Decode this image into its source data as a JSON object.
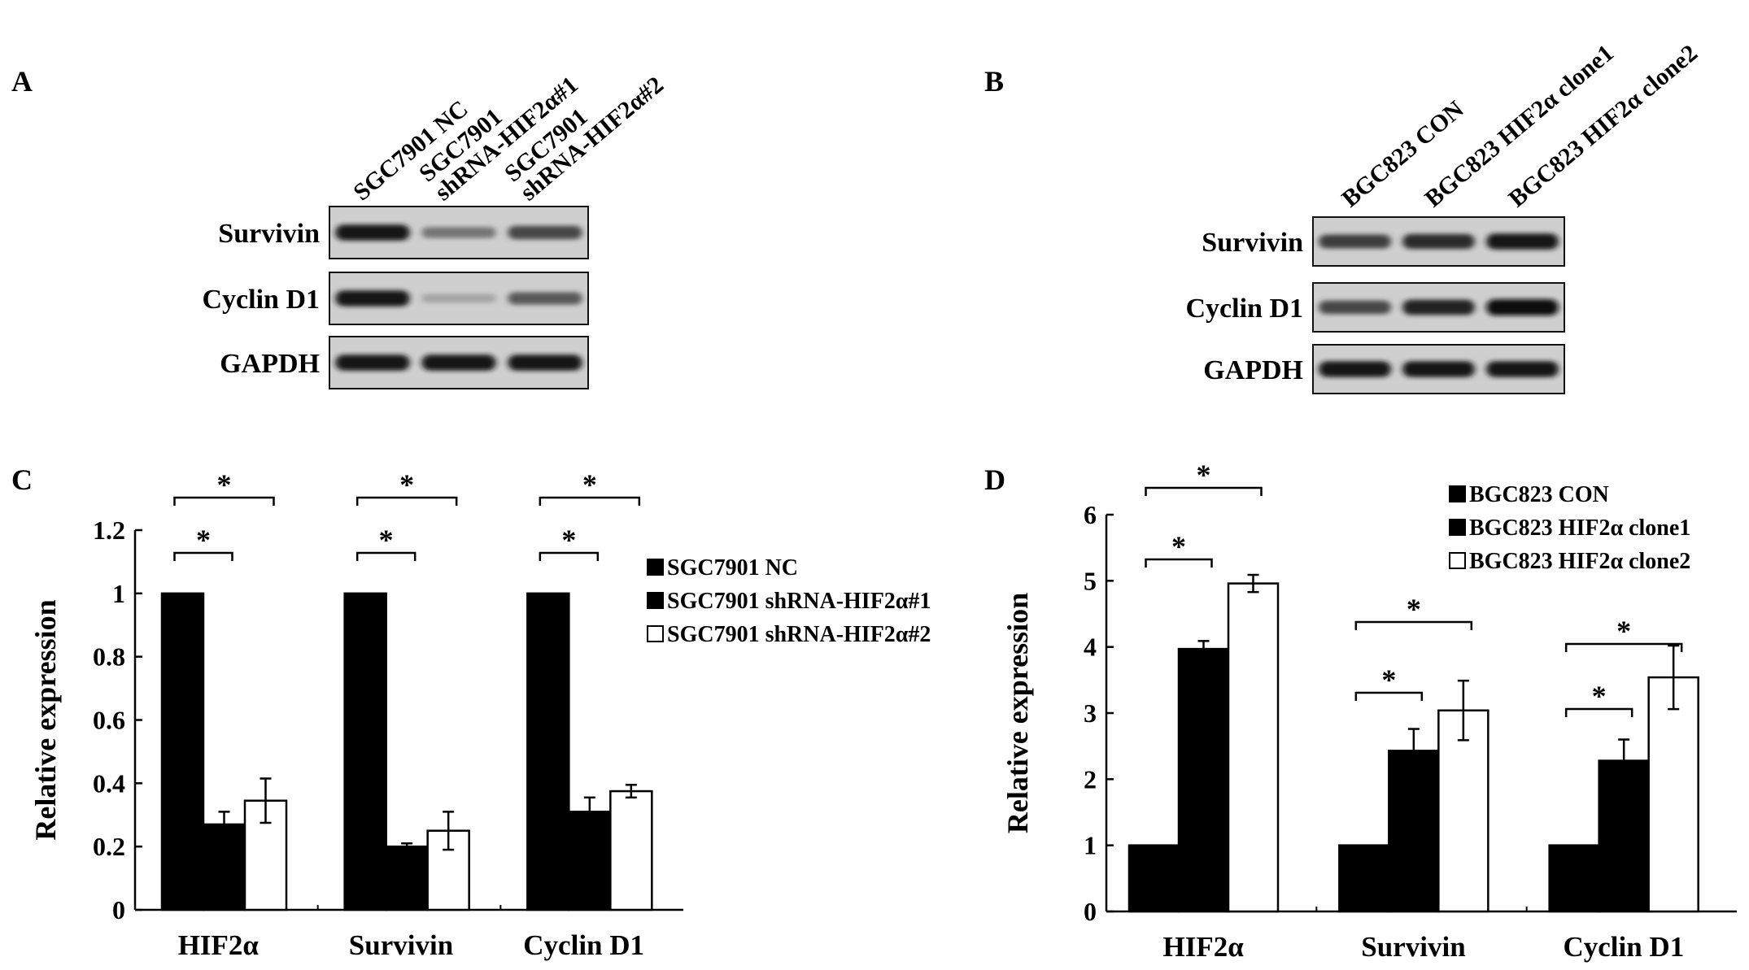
{
  "panels": {
    "A": {
      "letter": "A",
      "lanes": [
        [
          "SGC7901 NC"
        ],
        [
          "SGC7901",
          "shRNA-HIF2α#1"
        ],
        [
          "SGC7901",
          "shRNA-HIF2α#2"
        ]
      ],
      "rows": [
        {
          "label": "Survivin",
          "intensity": [
            0.95,
            0.45,
            0.7
          ]
        },
        {
          "label": "Cyclin D1",
          "intensity": [
            0.95,
            0.2,
            0.6
          ]
        },
        {
          "label": "GAPDH",
          "intensity": [
            0.95,
            0.95,
            0.95
          ]
        }
      ]
    },
    "B": {
      "letter": "B",
      "lanes": [
        [
          "BGC823 CON"
        ],
        [
          "BGC823 HIF2α clone1"
        ],
        [
          "BGC823 HIF2α clone2"
        ]
      ],
      "rows": [
        {
          "label": "Survivin",
          "intensity": [
            0.75,
            0.85,
            0.95
          ]
        },
        {
          "label": "Cyclin D1",
          "intensity": [
            0.7,
            0.9,
            1.0
          ]
        },
        {
          "label": "GAPDH",
          "intensity": [
            0.95,
            0.95,
            0.95
          ]
        }
      ]
    },
    "C": {
      "letter": "C"
    },
    "D": {
      "letter": "D"
    }
  },
  "chart_data": [
    {
      "type": "bar",
      "panel": "C",
      "categories": [
        "HIF2α",
        "Survivin",
        "Cyclin D1"
      ],
      "series": [
        {
          "name": "SGC7901 NC",
          "fill": "#000000",
          "values": [
            1.0,
            1.0,
            1.0
          ],
          "errors": [
            0,
            0,
            0
          ]
        },
        {
          "name": "SGC7901 shRNA-HIF2α#1",
          "fill": "#000000",
          "values": [
            0.27,
            0.2,
            0.31
          ],
          "errors": [
            0.04,
            0.01,
            0.045
          ]
        },
        {
          "name": "SGC7901 shRNA-HIF2α#2",
          "fill": "#ffffff",
          "values": [
            0.345,
            0.25,
            0.375
          ],
          "errors": [
            0.07,
            0.06,
            0.02
          ]
        }
      ],
      "ylabel": "Relative expression",
      "yticks": [
        "0",
        "0.2",
        "0.4",
        "0.6",
        "0.8",
        "1",
        "1.2"
      ],
      "ylim": [
        0,
        1.2
      ],
      "legend_position": "right",
      "significance": [
        {
          "category": 0,
          "from": 0,
          "to": 1,
          "label": "*"
        },
        {
          "category": 0,
          "from": 0,
          "to": 2,
          "label": "*"
        },
        {
          "category": 1,
          "from": 0,
          "to": 1,
          "label": "*"
        },
        {
          "category": 1,
          "from": 0,
          "to": 2,
          "label": "*"
        },
        {
          "category": 2,
          "from": 0,
          "to": 1,
          "label": "*"
        },
        {
          "category": 2,
          "from": 0,
          "to": 2,
          "label": "*"
        }
      ]
    },
    {
      "type": "bar",
      "panel": "D",
      "categories": [
        "HIF2α",
        "Survivin",
        "Cyclin D1"
      ],
      "series": [
        {
          "name": "BGC823 CON",
          "fill": "#000000",
          "values": [
            1.0,
            1.0,
            1.0
          ],
          "errors": [
            0,
            0,
            0
          ]
        },
        {
          "name": "BGC823 HIF2α clone1",
          "fill": "#000000",
          "values": [
            3.97,
            2.43,
            2.28
          ],
          "errors": [
            0.12,
            0.33,
            0.32
          ]
        },
        {
          "name": "BGC823 HIF2α clone2",
          "fill": "#ffffff",
          "values": [
            4.96,
            3.04,
            3.54
          ],
          "errors": [
            0.13,
            0.45,
            0.48
          ]
        }
      ],
      "ylabel": "Relative expression",
      "yticks": [
        "0",
        "1",
        "2",
        "3",
        "4",
        "5",
        "6"
      ],
      "ylim": [
        0,
        6
      ],
      "legend_position": "top-right",
      "significance": [
        {
          "category": 0,
          "from": 0,
          "to": 1,
          "label": "*"
        },
        {
          "category": 0,
          "from": 0,
          "to": 2,
          "label": "*"
        },
        {
          "category": 1,
          "from": 0,
          "to": 1,
          "label": "*"
        },
        {
          "category": 1,
          "from": 0,
          "to": 2,
          "label": "*"
        },
        {
          "category": 2,
          "from": 0,
          "to": 1,
          "label": "*"
        },
        {
          "category": 2,
          "from": 0,
          "to": 2,
          "label": "*"
        }
      ]
    }
  ]
}
